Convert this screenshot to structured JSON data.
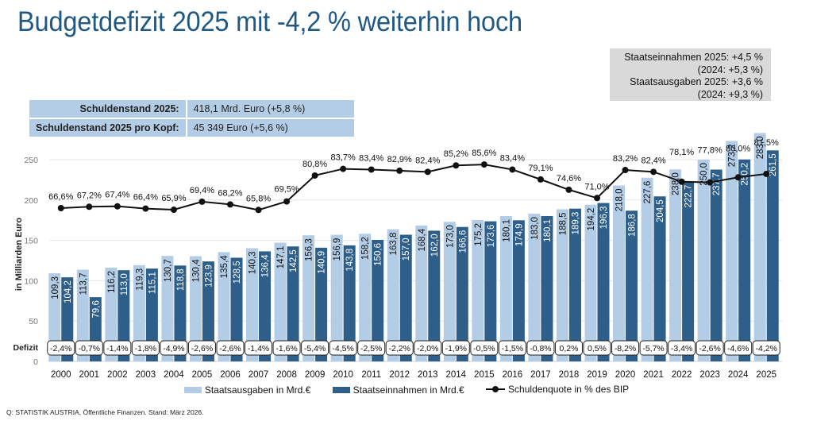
{
  "title": "Budgetdefizit 2025 mit -4,2 % weiterhin hoch",
  "infobox": {
    "lines": [
      "Staatseinnahmen 2025: +4,5 %",
      "(2024: +5,3 %)",
      "Staatsausgaben 2025: +3,6 %",
      "(2024: +9,3 %)"
    ]
  },
  "debt_table": {
    "rows": [
      {
        "label": "Schuldenstand 2025:",
        "value": "418,1 Mrd. Euro (+5,8 %)"
      },
      {
        "label": "Schuldenstand 2025 pro Kopf:",
        "value": "45 349 Euro (+5,6 %)"
      }
    ]
  },
  "colors": {
    "title": "#1f5882",
    "ausgaben": "#b4cde6",
    "einnahmen": "#2e5f8a",
    "line": "#111111",
    "gridline": "#e6e6e6",
    "infobox_bg": "#d9d9d9",
    "table_bg": "#b4cde6"
  },
  "legend": {
    "ausgaben": "Staatsausgaben in Mrd.€",
    "einnahmen": "Staatseinnahmen in Mrd.€",
    "quote": "Schuldenquote in % des BIP"
  },
  "source": "Q: STATISTIK AUSTRIA, Öffentliche Finanzen. Stand: März 2026.",
  "chart_data": {
    "type": "bar",
    "title": "Budgetdefizit 2025 mit -4,2 % weiterhin hoch",
    "xlabel": "",
    "ylabel": "in Milliarden Euro",
    "ylim": [
      0,
      250
    ],
    "yticks": [
      0,
      50,
      100,
      150,
      200,
      250
    ],
    "grid": true,
    "legend_position": "bottom",
    "deficit_row_label": "Defizit",
    "categories": [
      "2000",
      "2001",
      "2002",
      "2003",
      "2004",
      "2005",
      "2006",
      "2007",
      "2008",
      "2009",
      "2010",
      "2011",
      "2012",
      "2013",
      "2014",
      "2015",
      "2016",
      "2017",
      "2018",
      "2019",
      "2020",
      "2021",
      "2022",
      "2023",
      "2024",
      "2025"
    ],
    "series": [
      {
        "name": "Staatsausgaben in Mrd.€",
        "type": "bar",
        "values": [
          109.3,
          113.7,
          116.2,
          119.3,
          130.7,
          130.4,
          135.4,
          140.3,
          147.1,
          156.3,
          156.9,
          158.2,
          163.8,
          168.4,
          173.0,
          175.2,
          180.1,
          183.0,
          188.5,
          194.2,
          218.0,
          227.6,
          238.0,
          250.0,
          273.2,
          283.0
        ],
        "labels": [
          "109,3",
          "113,7",
          "116,2",
          "119,3",
          "130,7",
          "130,4",
          "135,4",
          "140,3",
          "147,1",
          "156,3",
          "156,9",
          "158,2",
          "163,8",
          "168,4",
          "173,0",
          "175,2",
          "180,1",
          "183,0",
          "188,5",
          "194,2",
          "218,0",
          "227,6",
          "238,0",
          "250,0",
          "273,2",
          "283,0"
        ]
      },
      {
        "name": "Staatseinnahmen in Mrd.€",
        "type": "bar",
        "values": [
          104.2,
          79.6,
          113.0,
          115.1,
          118.8,
          123.9,
          128.5,
          136.4,
          142.5,
          140.9,
          143.8,
          150.6,
          157.0,
          162.0,
          166.6,
          173.6,
          174.9,
          180.1,
          189.3,
          196.3,
          186.8,
          204.5,
          222.7,
          237.7,
          250.2,
          261.5
        ],
        "labels": [
          "104,2",
          "79,6",
          "113,0",
          "115,1",
          "118,8",
          "123,9",
          "128,5",
          "136,4",
          "142,5",
          "140,9",
          "143,8",
          "150,6",
          "157,0",
          "162,0",
          "166,6",
          "173,6",
          "174,9",
          "180,1",
          "189,3",
          "196,3",
          "186,8",
          "204,5",
          "222,7",
          "237,7",
          "250,2",
          "261,5"
        ]
      },
      {
        "name": "Schuldenquote in % des BIP",
        "type": "line",
        "values": [
          66.6,
          67.2,
          67.4,
          66.4,
          65.9,
          69.4,
          68.2,
          65.8,
          69.5,
          80.8,
          83.7,
          83.4,
          82.9,
          82.4,
          85.2,
          85.6,
          83.4,
          79.1,
          74.6,
          71.0,
          83.2,
          82.4,
          78.1,
          77.8,
          80.0,
          81.5
        ],
        "labels": [
          "66,6%",
          "67,2%",
          "67,4%",
          "66,4%",
          "65,9%",
          "69,4%",
          "68,2%",
          "65,8%",
          "69,5%",
          "80,8%",
          "83,7%",
          "83,4%",
          "82,9%",
          "82,4%",
          "85,2%",
          "85,6%",
          "83,4%",
          "79,1%",
          "74,6%",
          "71,0%",
          "83,2%",
          "82,4%",
          "78,1%",
          "77,8%",
          "80,0%",
          "81,5%"
        ]
      }
    ],
    "deficit": {
      "values": [
        -2.4,
        -0.7,
        -1.4,
        -1.8,
        -4.9,
        -2.6,
        -2.6,
        -1.4,
        -1.6,
        -5.4,
        -4.5,
        -2.5,
        -2.2,
        -2.0,
        -1.9,
        -0.5,
        -1.5,
        -0.8,
        0.2,
        0.5,
        -8.2,
        -5.7,
        -3.4,
        -2.6,
        -4.6,
        -4.2
      ],
      "labels": [
        "-2,4%",
        "-0,7%",
        "-1,4%",
        "-1,8%",
        "-4,9%",
        "-2,6%",
        "-2,6%",
        "-1,4%",
        "-1,6%",
        "-5,4%",
        "-4,5%",
        "-2,5%",
        "-2,2%",
        "-2,0%",
        "-1,9%",
        "-0,5%",
        "-1,5%",
        "-0,8%",
        "0,2%",
        "0,5%",
        "-8,2%",
        "-5,7%",
        "-3,4%",
        "-2,6%",
        "-4,6%",
        "-4,2%"
      ]
    }
  }
}
